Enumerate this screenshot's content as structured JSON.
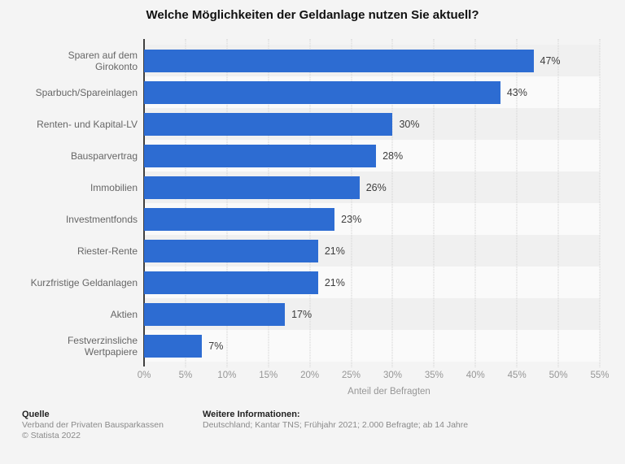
{
  "chart_data": {
    "type": "bar",
    "orientation": "horizontal",
    "title": "Welche Möglichkeiten der Geldanlage nutzen Sie aktuell?",
    "categories": [
      "Sparen auf dem Girokonto",
      "Sparbuch/Spareinlagen",
      "Renten- und Kapital-LV",
      "Bausparvertrag",
      "Immobilien",
      "Investmentfonds",
      "Riester-Rente",
      "Kurzfristige Geldanlagen",
      "Aktien",
      "Festverzinsliche Wertpapiere"
    ],
    "values": [
      47,
      43,
      30,
      28,
      26,
      23,
      21,
      21,
      17,
      7
    ],
    "value_labels": [
      "47%",
      "43%",
      "30%",
      "28%",
      "26%",
      "23%",
      "21%",
      "21%",
      "17%",
      "7%"
    ],
    "xlabel": "Anteil der Befragten",
    "xlim": [
      0,
      55
    ],
    "tick_step": 5,
    "x_ticks": [
      "0%",
      "5%",
      "10%",
      "15%",
      "20%",
      "25%",
      "30%",
      "35%",
      "40%",
      "45%",
      "50%",
      "55%"
    ],
    "grid": "vertical-dotted",
    "legend": "none",
    "bar_color": "#2d6cd2"
  },
  "footer": {
    "source_label": "Quelle",
    "source": "Verband der Privaten Bausparkassen",
    "copyright": "© Statista 2022",
    "info_label": "Weitere Informationen:",
    "info": "Deutschland; Kantar TNS; Frühjahr 2021; 2.000 Befragte; ab 14 Jahre"
  }
}
